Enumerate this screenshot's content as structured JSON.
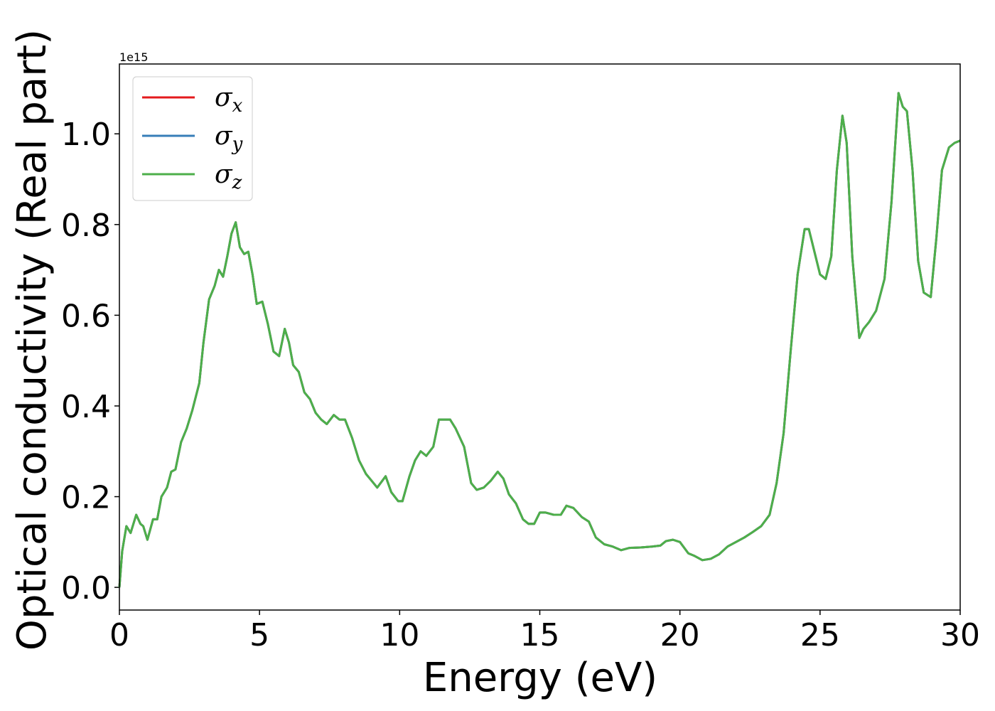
{
  "chart_data": {
    "type": "line",
    "x_label": "Energy (eV)",
    "y_label": "Optical conductivity (Real part)",
    "y_offset_label": "1e15",
    "xlim": [
      0,
      30
    ],
    "xticks": [
      0,
      5,
      10,
      15,
      20,
      25,
      30
    ],
    "ylim": [
      -0.05,
      1.154
    ],
    "yticks": [
      {
        "value": 0,
        "label": "0.0"
      },
      {
        "value": 0.2,
        "label": "0.2"
      },
      {
        "value": 0.4,
        "label": "0.4"
      },
      {
        "value": 0.6,
        "label": "0.6"
      },
      {
        "value": 0.8,
        "label": "0.8"
      },
      {
        "value": 1.0,
        "label": "1.0"
      }
    ],
    "grid": false,
    "legend": "upper left",
    "x": [
      0,
      0.1,
      0.25,
      0.4,
      0.6,
      0.75,
      0.85,
      1.0,
      1.2,
      1.35,
      1.5,
      1.7,
      1.85,
      2.0,
      2.2,
      2.4,
      2.6,
      2.85,
      3.0,
      3.2,
      3.4,
      3.55,
      3.7,
      3.85,
      4.0,
      4.15,
      4.3,
      4.45,
      4.6,
      4.75,
      4.9,
      5.1,
      5.3,
      5.5,
      5.7,
      5.9,
      6.05,
      6.2,
      6.4,
      6.6,
      6.8,
      7.0,
      7.2,
      7.4,
      7.65,
      7.85,
      8.05,
      8.3,
      8.55,
      8.8,
      9.0,
      9.2,
      9.5,
      9.7,
      9.95,
      10.1,
      10.35,
      10.55,
      10.75,
      10.95,
      11.2,
      11.4,
      11.6,
      11.8,
      12.0,
      12.3,
      12.55,
      12.75,
      13.0,
      13.25,
      13.5,
      13.7,
      13.9,
      14.15,
      14.4,
      14.6,
      14.8,
      15.0,
      15.2,
      15.5,
      15.75,
      15.95,
      16.2,
      16.5,
      16.75,
      17.0,
      17.3,
      17.6,
      17.9,
      18.2,
      18.6,
      19.0,
      19.3,
      19.5,
      19.75,
      20.0,
      20.3,
      20.5,
      20.8,
      21.1,
      21.4,
      21.7,
      22.0,
      22.3,
      22.6,
      22.9,
      23.2,
      23.45,
      23.7,
      23.95,
      24.2,
      24.45,
      24.6,
      24.8,
      25.0,
      25.2,
      25.4,
      25.6,
      25.8,
      25.95,
      26.15,
      26.4,
      26.55,
      26.75,
      27.0,
      27.3,
      27.55,
      27.8,
      27.95,
      28.1,
      28.3,
      28.5,
      28.7,
      28.95,
      29.15,
      29.35,
      29.6,
      29.8,
      30.0
    ],
    "series": [
      {
        "name": "σx",
        "color": "#e41a1c",
        "values": [
          0,
          0.08,
          0.135,
          0.12,
          0.16,
          0.14,
          0.135,
          0.105,
          0.15,
          0.15,
          0.2,
          0.22,
          0.255,
          0.26,
          0.32,
          0.35,
          0.39,
          0.45,
          0.54,
          0.635,
          0.665,
          0.7,
          0.685,
          0.73,
          0.78,
          0.805,
          0.75,
          0.735,
          0.74,
          0.69,
          0.625,
          0.63,
          0.58,
          0.52,
          0.51,
          0.57,
          0.54,
          0.49,
          0.475,
          0.43,
          0.415,
          0.385,
          0.37,
          0.36,
          0.38,
          0.37,
          0.37,
          0.33,
          0.28,
          0.25,
          0.235,
          0.22,
          0.245,
          0.21,
          0.19,
          0.19,
          0.245,
          0.28,
          0.3,
          0.29,
          0.31,
          0.37,
          0.37,
          0.37,
          0.35,
          0.31,
          0.23,
          0.215,
          0.22,
          0.235,
          0.255,
          0.24,
          0.205,
          0.185,
          0.15,
          0.14,
          0.14,
          0.165,
          0.165,
          0.16,
          0.16,
          0.18,
          0.175,
          0.155,
          0.145,
          0.11,
          0.095,
          0.09,
          0.082,
          0.087,
          0.088,
          0.09,
          0.092,
          0.102,
          0.105,
          0.1,
          0.075,
          0.07,
          0.06,
          0.063,
          0.073,
          0.09,
          0.1,
          0.11,
          0.122,
          0.135,
          0.16,
          0.23,
          0.34,
          0.52,
          0.69,
          0.79,
          0.79,
          0.74,
          0.69,
          0.68,
          0.73,
          0.92,
          1.04,
          0.98,
          0.73,
          0.55,
          0.57,
          0.585,
          0.61,
          0.68,
          0.85,
          1.09,
          1.06,
          1.05,
          0.92,
          0.72,
          0.65,
          0.64,
          0.77,
          0.92,
          0.97,
          0.98,
          0.985
        ]
      },
      {
        "name": "σy",
        "color": "#377eb8",
        "values": [
          0,
          0.08,
          0.135,
          0.12,
          0.16,
          0.14,
          0.135,
          0.105,
          0.15,
          0.15,
          0.2,
          0.22,
          0.255,
          0.26,
          0.32,
          0.35,
          0.39,
          0.45,
          0.54,
          0.635,
          0.665,
          0.7,
          0.685,
          0.73,
          0.78,
          0.805,
          0.75,
          0.735,
          0.74,
          0.69,
          0.625,
          0.63,
          0.58,
          0.52,
          0.51,
          0.57,
          0.54,
          0.49,
          0.475,
          0.43,
          0.415,
          0.385,
          0.37,
          0.36,
          0.38,
          0.37,
          0.37,
          0.33,
          0.28,
          0.25,
          0.235,
          0.22,
          0.245,
          0.21,
          0.19,
          0.19,
          0.245,
          0.28,
          0.3,
          0.29,
          0.31,
          0.37,
          0.37,
          0.37,
          0.35,
          0.31,
          0.23,
          0.215,
          0.22,
          0.235,
          0.255,
          0.24,
          0.205,
          0.185,
          0.15,
          0.14,
          0.14,
          0.165,
          0.165,
          0.16,
          0.16,
          0.18,
          0.175,
          0.155,
          0.145,
          0.11,
          0.095,
          0.09,
          0.082,
          0.087,
          0.088,
          0.09,
          0.092,
          0.102,
          0.105,
          0.1,
          0.075,
          0.07,
          0.06,
          0.063,
          0.073,
          0.09,
          0.1,
          0.11,
          0.122,
          0.135,
          0.16,
          0.23,
          0.34,
          0.52,
          0.69,
          0.79,
          0.79,
          0.74,
          0.69,
          0.68,
          0.73,
          0.92,
          1.04,
          0.98,
          0.73,
          0.55,
          0.57,
          0.585,
          0.61,
          0.68,
          0.85,
          1.09,
          1.06,
          1.05,
          0.92,
          0.72,
          0.65,
          0.64,
          0.77,
          0.92,
          0.97,
          0.98,
          0.985
        ]
      },
      {
        "name": "σz",
        "color": "#4daf4a",
        "values": [
          0,
          0.08,
          0.135,
          0.12,
          0.16,
          0.14,
          0.135,
          0.105,
          0.15,
          0.15,
          0.2,
          0.22,
          0.255,
          0.26,
          0.32,
          0.35,
          0.39,
          0.45,
          0.54,
          0.635,
          0.665,
          0.7,
          0.685,
          0.73,
          0.78,
          0.805,
          0.75,
          0.735,
          0.74,
          0.69,
          0.625,
          0.63,
          0.58,
          0.52,
          0.51,
          0.57,
          0.54,
          0.49,
          0.475,
          0.43,
          0.415,
          0.385,
          0.37,
          0.36,
          0.38,
          0.37,
          0.37,
          0.33,
          0.28,
          0.25,
          0.235,
          0.22,
          0.245,
          0.21,
          0.19,
          0.19,
          0.245,
          0.28,
          0.3,
          0.29,
          0.31,
          0.37,
          0.37,
          0.37,
          0.35,
          0.31,
          0.23,
          0.215,
          0.22,
          0.235,
          0.255,
          0.24,
          0.205,
          0.185,
          0.15,
          0.14,
          0.14,
          0.165,
          0.165,
          0.16,
          0.16,
          0.18,
          0.175,
          0.155,
          0.145,
          0.11,
          0.095,
          0.09,
          0.082,
          0.087,
          0.088,
          0.09,
          0.092,
          0.102,
          0.105,
          0.1,
          0.075,
          0.07,
          0.06,
          0.063,
          0.073,
          0.09,
          0.1,
          0.11,
          0.122,
          0.135,
          0.16,
          0.23,
          0.34,
          0.52,
          0.69,
          0.79,
          0.79,
          0.74,
          0.69,
          0.68,
          0.73,
          0.92,
          1.04,
          0.98,
          0.73,
          0.55,
          0.57,
          0.585,
          0.61,
          0.68,
          0.85,
          1.09,
          1.06,
          1.05,
          0.92,
          0.72,
          0.65,
          0.64,
          0.77,
          0.92,
          0.97,
          0.98,
          0.985
        ]
      }
    ]
  }
}
